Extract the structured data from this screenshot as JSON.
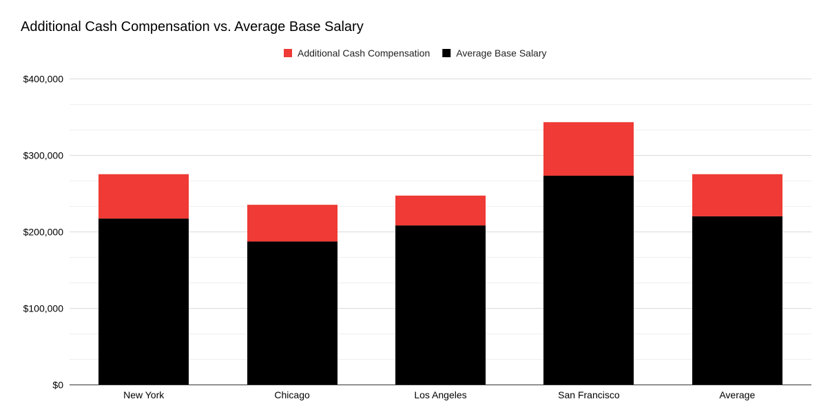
{
  "chart_data": {
    "type": "bar",
    "stacked": true,
    "title": "Additional Cash Compensation vs. Average Base Salary",
    "xlabel": "",
    "ylabel": "",
    "categories": [
      "New York",
      "Chicago",
      "Los Angeles",
      "San Francisco",
      "Average"
    ],
    "series": [
      {
        "name": "Average Base Salary",
        "color": "#000000",
        "values": [
          217000,
          187000,
          208000,
          273000,
          220000
        ]
      },
      {
        "name": "Additional Cash Compensation",
        "color": "#ef3a35",
        "values": [
          58000,
          48000,
          39000,
          70000,
          55000
        ]
      }
    ],
    "legend_order": [
      "Additional Cash Compensation",
      "Average Base Salary"
    ],
    "legend_position": "top-center",
    "ylim": [
      0,
      400000
    ],
    "yticks": [
      0,
      100000,
      200000,
      300000,
      400000
    ],
    "ytick_labels": [
      "$0",
      "$100,000",
      "$200,000",
      "$300,000",
      "$400,000"
    ],
    "grid": true,
    "minor_grid": true
  }
}
